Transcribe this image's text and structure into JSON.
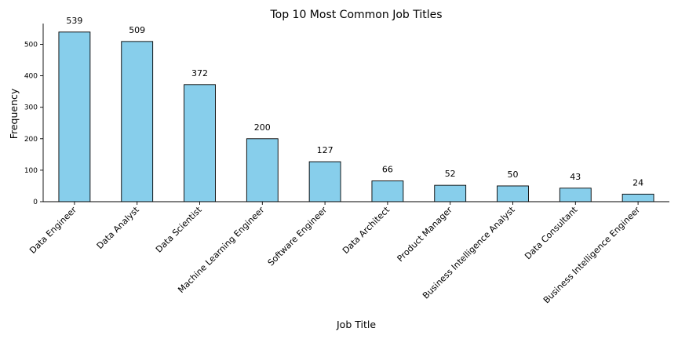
{
  "chart_data": {
    "type": "bar",
    "title": "Top 10 Most Common Job Titles",
    "xlabel": "Job Title",
    "ylabel": "Frequency",
    "categories": [
      "Data Engineer",
      "Data Analyst",
      "Data Scientist",
      "Machine Learning Engineer",
      "Software Engineer",
      "Data Architect",
      "Product Manager",
      "Business Intelligence Analyst",
      "Data Consultant",
      "Business Intelligence Engineer"
    ],
    "values": [
      539,
      509,
      372,
      200,
      127,
      66,
      52,
      50,
      43,
      24
    ],
    "data_labels": [
      "539",
      "509",
      "372",
      "200",
      "127",
      "66",
      "52",
      "50",
      "43",
      "24"
    ],
    "ylim": [
      0,
      566
    ],
    "yticks": [
      0,
      100,
      200,
      300,
      400,
      500
    ],
    "bar_color": "#87CEEB",
    "edge_color": "#000000",
    "grid": false,
    "legend": "none"
  }
}
